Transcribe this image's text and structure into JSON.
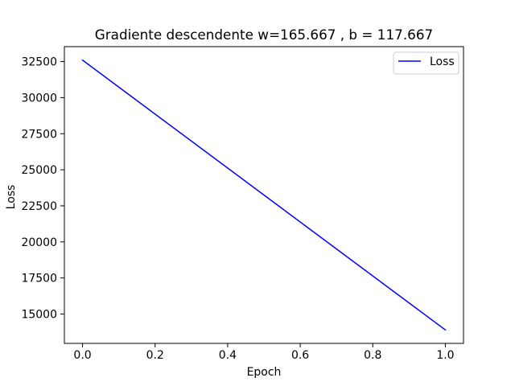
{
  "chart_data": {
    "type": "line",
    "title": "Gradiente descendente w=165.667 , b = 117.667",
    "xlabel": "Epoch",
    "ylabel": "Loss",
    "x": [
      0.0,
      1.0
    ],
    "series": [
      {
        "name": "Loss",
        "values": [
          32600,
          13900
        ],
        "color": "#0000ff"
      }
    ],
    "xlim": [
      -0.05,
      1.05
    ],
    "ylim": [
      12965,
      33535
    ],
    "xticks": [
      0.0,
      0.2,
      0.4,
      0.6,
      0.8,
      1.0
    ],
    "xtick_labels": [
      "0.0",
      "0.2",
      "0.4",
      "0.6",
      "0.8",
      "1.0"
    ],
    "yticks": [
      15000,
      17500,
      20000,
      22500,
      25000,
      27500,
      30000,
      32500
    ],
    "ytick_labels": [
      "15000",
      "17500",
      "20000",
      "22500",
      "25000",
      "27500",
      "30000",
      "32500"
    ],
    "grid": false,
    "legend_position": "top-right"
  }
}
